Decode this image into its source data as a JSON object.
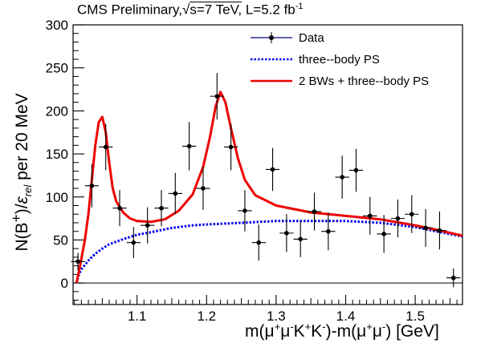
{
  "chart_data": {
    "type": "scatter",
    "title_parts": {
      "experiment": "CMS Preliminary,",
      "energy": "s=7 TeV,",
      "lumi_prefix": "L=5.2 fb",
      "lumi_exp": "-1"
    },
    "xlabel_parts": {
      "m_open": "m(",
      "mu1": "μ",
      "plus1": "+",
      "mu2": "μ",
      "minus1": "-",
      "K1": "K",
      "plusK": "+",
      "K2": "K",
      "minusK": "-",
      "mid": ")-m(",
      "mu3": "μ",
      "plus3": "+",
      "mu4": "μ",
      "minus4": "-",
      "close": ") [GeV]"
    },
    "ylabel_parts": {
      "prefix": "N(B",
      "sup": "+",
      "mid": ")/",
      "eps": "ε",
      "sub": "rel",
      "suffix": " per 20 MeV"
    },
    "xlim": [
      1.008,
      1.568
    ],
    "ylim": [
      -25,
      300
    ],
    "x_ticks": [
      {
        "value": 1.1,
        "label": "1.1"
      },
      {
        "value": 1.2,
        "label": "1.2"
      },
      {
        "value": 1.3,
        "label": "1.3"
      },
      {
        "value": 1.4,
        "label": "1.4"
      },
      {
        "value": 1.5,
        "label": "1.5"
      }
    ],
    "y_ticks": [
      {
        "value": 0,
        "label": "0"
      },
      {
        "value": 50,
        "label": "50"
      },
      {
        "value": 100,
        "label": "100"
      },
      {
        "value": 150,
        "label": "150"
      },
      {
        "value": 200,
        "label": "200"
      },
      {
        "value": 250,
        "label": "250"
      },
      {
        "value": 300,
        "label": "300"
      }
    ],
    "legend": {
      "placement": "top-right",
      "entries": [
        {
          "label": "Data",
          "color": "#000080",
          "style": "marker-line"
        },
        {
          "label": "three--body PS",
          "color": "#0000ee",
          "style": "dotted"
        },
        {
          "label": "2 BWs + three--body PS",
          "color": "#ee0000",
          "style": "solid"
        }
      ]
    },
    "series": [
      {
        "name": "Data",
        "color": "#000000",
        "points": [
          {
            "x": 1.015,
            "y": 25,
            "err": 10
          },
          {
            "x": 1.035,
            "y": 113,
            "err": 25
          },
          {
            "x": 1.055,
            "y": 158,
            "err": 27
          },
          {
            "x": 1.075,
            "y": 87,
            "err": 21
          },
          {
            "x": 1.095,
            "y": 47,
            "err": 18
          },
          {
            "x": 1.115,
            "y": 67,
            "err": 21
          },
          {
            "x": 1.135,
            "y": 87,
            "err": 21
          },
          {
            "x": 1.155,
            "y": 104,
            "err": 24
          },
          {
            "x": 1.175,
            "y": 159,
            "err": 28
          },
          {
            "x": 1.195,
            "y": 110,
            "err": 25
          },
          {
            "x": 1.215,
            "y": 217,
            "err": 27
          },
          {
            "x": 1.235,
            "y": 158,
            "err": 27
          },
          {
            "x": 1.255,
            "y": 84,
            "err": 24
          },
          {
            "x": 1.275,
            "y": 47,
            "err": 21
          },
          {
            "x": 1.295,
            "y": 132,
            "err": 25
          },
          {
            "x": 1.315,
            "y": 58,
            "err": 22
          },
          {
            "x": 1.335,
            "y": 51,
            "err": 21
          },
          {
            "x": 1.355,
            "y": 83,
            "err": 22
          },
          {
            "x": 1.375,
            "y": 60,
            "err": 22
          },
          {
            "x": 1.395,
            "y": 123,
            "err": 25
          },
          {
            "x": 1.415,
            "y": 131,
            "err": 25
          },
          {
            "x": 1.435,
            "y": 78,
            "err": 22
          },
          {
            "x": 1.455,
            "y": 57,
            "err": 22
          },
          {
            "x": 1.475,
            "y": 75,
            "err": 22
          },
          {
            "x": 1.495,
            "y": 80,
            "err": 22
          },
          {
            "x": 1.515,
            "y": 64,
            "err": 22
          },
          {
            "x": 1.535,
            "y": 61,
            "err": 22
          },
          {
            "x": 1.555,
            "y": 6,
            "err": 11
          }
        ]
      },
      {
        "name": "three--body PS",
        "color": "#0000ee",
        "points": [
          [
            1.013,
            0
          ],
          [
            1.016,
            9
          ],
          [
            1.02,
            16
          ],
          [
            1.03,
            26
          ],
          [
            1.04,
            34
          ],
          [
            1.05,
            40
          ],
          [
            1.06,
            45
          ],
          [
            1.08,
            51
          ],
          [
            1.1,
            56
          ],
          [
            1.12,
            59
          ],
          [
            1.15,
            64
          ],
          [
            1.18,
            67
          ],
          [
            1.2,
            68
          ],
          [
            1.25,
            70
          ],
          [
            1.3,
            72
          ],
          [
            1.35,
            72
          ],
          [
            1.4,
            72
          ],
          [
            1.45,
            70
          ],
          [
            1.5,
            65
          ],
          [
            1.53,
            60
          ],
          [
            1.568,
            54
          ]
        ]
      },
      {
        "name": "2 BWs + three--body PS",
        "color": "#ee0000",
        "points": [
          [
            1.013,
            0
          ],
          [
            1.018,
            20
          ],
          [
            1.025,
            50
          ],
          [
            1.03,
            80
          ],
          [
            1.035,
            120
          ],
          [
            1.04,
            160
          ],
          [
            1.045,
            187
          ],
          [
            1.05,
            193
          ],
          [
            1.055,
            175
          ],
          [
            1.06,
            140
          ],
          [
            1.065,
            110
          ],
          [
            1.07,
            95
          ],
          [
            1.08,
            82
          ],
          [
            1.09,
            75
          ],
          [
            1.1,
            72
          ],
          [
            1.12,
            71
          ],
          [
            1.14,
            74
          ],
          [
            1.16,
            84
          ],
          [
            1.18,
            103
          ],
          [
            1.195,
            135
          ],
          [
            1.205,
            170
          ],
          [
            1.213,
            205
          ],
          [
            1.22,
            222
          ],
          [
            1.227,
            210
          ],
          [
            1.235,
            180
          ],
          [
            1.245,
            145
          ],
          [
            1.255,
            120
          ],
          [
            1.27,
            102
          ],
          [
            1.3,
            90
          ],
          [
            1.35,
            82
          ],
          [
            1.4,
            78
          ],
          [
            1.45,
            74
          ],
          [
            1.5,
            67
          ],
          [
            1.53,
            62
          ],
          [
            1.568,
            55
          ]
        ]
      }
    ],
    "reference_line_y": 0
  }
}
